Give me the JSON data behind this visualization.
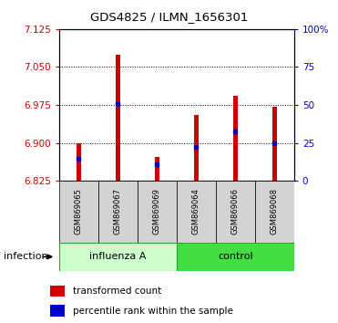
{
  "title": "GDS4825 / ILMN_1656301",
  "samples": [
    "GSM869065",
    "GSM869067",
    "GSM869069",
    "GSM869064",
    "GSM869066",
    "GSM869068"
  ],
  "bar_color": "#cc0000",
  "blue_color": "#0000cc",
  "ylim_left": [
    6.825,
    7.125
  ],
  "yticks_left": [
    6.825,
    6.9,
    6.975,
    7.05,
    7.125
  ],
  "yticks_right": [
    0,
    25,
    50,
    75,
    100
  ],
  "ylim_right": [
    0,
    100
  ],
  "bar_tops": [
    6.9,
    7.075,
    6.872,
    6.955,
    6.993,
    6.972
  ],
  "blue_positions": [
    6.868,
    6.976,
    6.857,
    6.892,
    6.922,
    6.9
  ],
  "bar_bottom": 6.825,
  "bar_width": 0.12,
  "tick_color_left": "#cc0000",
  "tick_color_right": "#0000cc",
  "sample_bg": "#d3d3d3",
  "influenza_color": "#ccffcc",
  "control_color": "#44dd44",
  "group_border": "#22aa22",
  "legend_items": [
    "transformed count",
    "percentile rank within the sample"
  ]
}
